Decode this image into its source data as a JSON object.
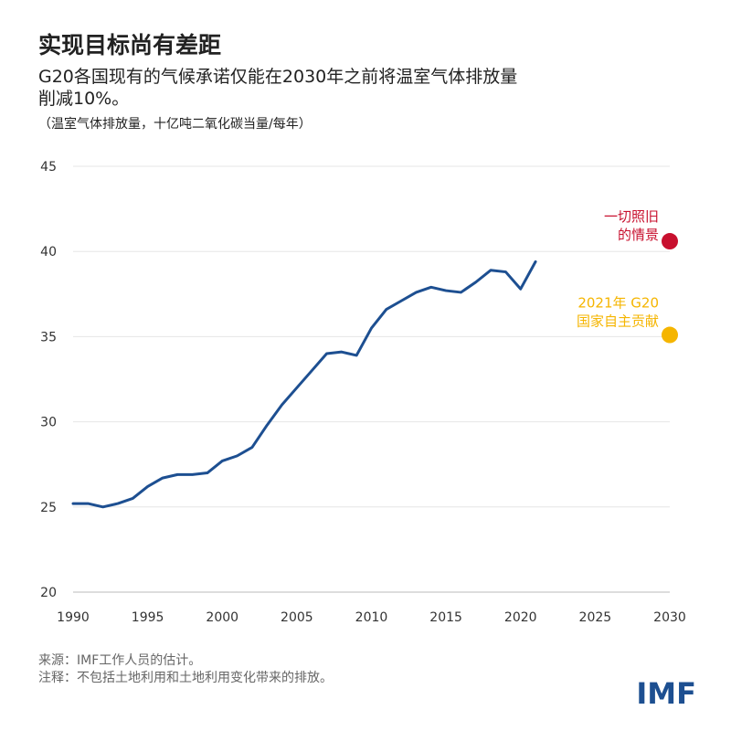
{
  "chart_data": {
    "type": "line",
    "title": "实现目标尚有差距",
    "subtitle": [
      "G20各国现有的气候承诺仅能在2030年之前将温室气体排放量",
      "削减10%。"
    ],
    "unit_label": "（温室气体排放量，十亿吨二氧化碳当量/每年）",
    "x": [
      1990,
      1991,
      1992,
      1993,
      1994,
      1995,
      1996,
      1997,
      1998,
      1999,
      2000,
      2001,
      2002,
      2003,
      2004,
      2005,
      2006,
      2007,
      2008,
      2009,
      2010,
      2011,
      2012,
      2013,
      2014,
      2015,
      2016,
      2017,
      2018,
      2019,
      2020,
      2021
    ],
    "series": [
      {
        "color": "#1d4f91",
        "values": [
          25.2,
          25.2,
          25.0,
          25.2,
          25.5,
          26.2,
          26.7,
          26.9,
          26.9,
          27.0,
          27.7,
          28.0,
          28.5,
          29.8,
          31.0,
          32.0,
          33.0,
          34.0,
          34.1,
          33.9,
          35.5,
          36.6,
          37.1,
          37.6,
          37.9,
          37.7,
          37.6,
          38.2,
          38.9,
          38.8,
          37.8,
          39.4
        ]
      }
    ],
    "points": [
      {
        "x": 2030,
        "y": 40.6,
        "color": "#c8102e",
        "label": [
          "一切照旧",
          "的情景"
        ]
      },
      {
        "x": 2030,
        "y": 35.1,
        "color": "#f5b500",
        "label": [
          "2021年 G20",
          "国家自主贡献"
        ]
      }
    ],
    "xlim": [
      1990,
      2030
    ],
    "xticks": [
      1990,
      1995,
      2000,
      2005,
      2010,
      2015,
      2020,
      2025,
      2030
    ],
    "ylim": [
      20,
      45
    ],
    "yticks": [
      20,
      25,
      30,
      35,
      40,
      45
    ],
    "grid": true,
    "source": "来源：IMF工作人员的估计。",
    "note": "注释：不包括土地利用和土地利用变化带来的排放。",
    "logo": "IMF"
  }
}
